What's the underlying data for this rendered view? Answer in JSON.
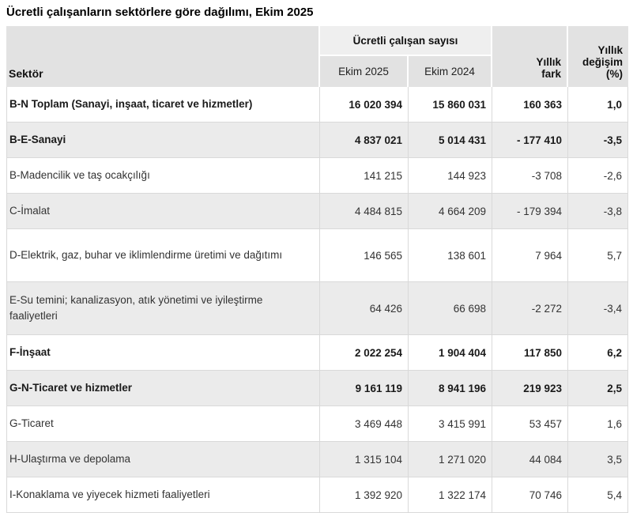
{
  "title": "Ücretli çalışanların sektörlere göre dağılımı, Ekim 2025",
  "table": {
    "headers": {
      "sector": "Sektör",
      "group": "Ücretli çalışan sayısı",
      "col_2025": "Ekim 2025",
      "col_2024": "Ekim 2024",
      "diff": "Yıllık fark",
      "change": "Yıllık değişim (%)"
    },
    "rows": [
      {
        "label": "B-N Toplam (Sanayi, inşaat, ticaret ve hizmetler)",
        "e2025": "16 020 394",
        "e2024": "15 860 031",
        "fark": "160 363",
        "pct": "1,0"
      },
      {
        "label": "B-E-Sanayi",
        "e2025": "4 837 021",
        "e2024": "5 014 431",
        "fark": "- 177 410",
        "pct": "-3,5"
      },
      {
        "label": "B-Madencilik ve taş ocakçılığı",
        "e2025": "141 215",
        "e2024": "144 923",
        "fark": "-3 708",
        "pct": "-2,6"
      },
      {
        "label": "C-İmalat",
        "e2025": "4 484 815",
        "e2024": "4 664 209",
        "fark": "- 179 394",
        "pct": "-3,8"
      },
      {
        "label": "D-Elektrik, gaz, buhar ve iklimlendirme üretimi ve dağıtımı",
        "e2025": "146 565",
        "e2024": "138 601",
        "fark": "7 964",
        "pct": "5,7"
      },
      {
        "label": "E-Su temini; kanalizasyon, atık yönetimi ve iyileştirme faaliyetleri",
        "e2025": "64 426",
        "e2024": "66 698",
        "fark": "-2 272",
        "pct": "-3,4"
      },
      {
        "label": "F-İnşaat",
        "e2025": "2 022 254",
        "e2024": "1 904 404",
        "fark": "117 850",
        "pct": "6,2"
      },
      {
        "label": "G-N-Ticaret ve hizmetler",
        "e2025": "9 161 119",
        "e2024": "8 941 196",
        "fark": "219 923",
        "pct": "2,5"
      },
      {
        "label": "G-Ticaret",
        "e2025": "3 469 448",
        "e2024": "3 415 991",
        "fark": "53 457",
        "pct": "1,6"
      },
      {
        "label": "H-Ulaştırma ve depolama",
        "e2025": "1 315 104",
        "e2024": "1 271 020",
        "fark": "44 084",
        "pct": "3,5"
      },
      {
        "label": "I-Konaklama ve yiyecek hizmeti faaliyetleri",
        "e2025": "1 392 920",
        "e2024": "1 322 174",
        "fark": "70 746",
        "pct": "5,4"
      }
    ]
  },
  "colors": {
    "header_bg": "#e2e2e2",
    "header_group_bg": "#efefef",
    "stripe_bg": "#ebebeb",
    "border": "#d9d9d9",
    "text_bold": "#1a1a1a",
    "text_regular": "#333333"
  }
}
